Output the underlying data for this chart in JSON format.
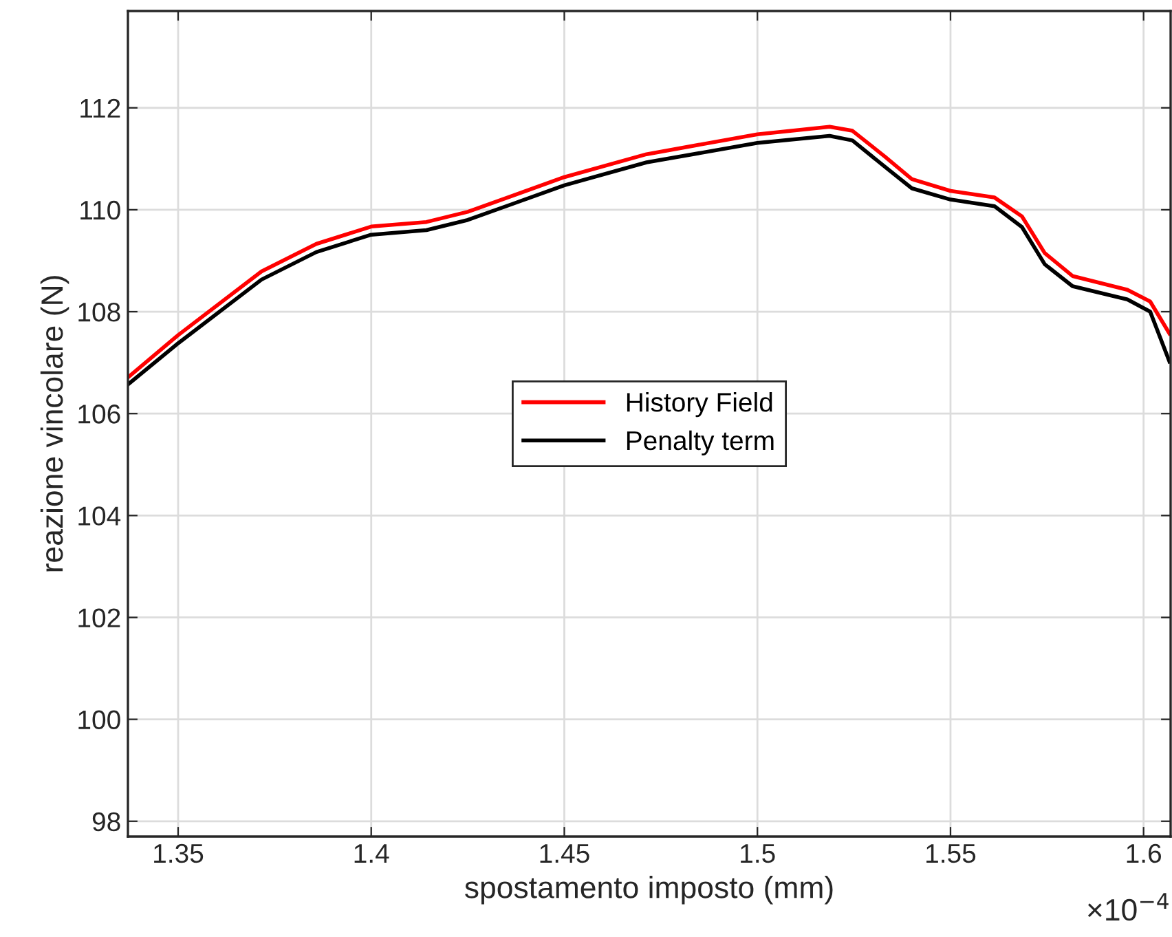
{
  "chart_data": {
    "type": "line",
    "xlabel": "spostamento imposto (mm)",
    "ylabel": "reazione vincolare (N)",
    "annotations": [
      "×10$^{−4}$"
    ],
    "xlim": [
      1.337,
      1.607
    ],
    "xticks": [
      1.35,
      1.4,
      1.45,
      1.5,
      1.55,
      1.6
    ],
    "ylim": [
      97.7,
      113.9
    ],
    "yticks": [
      98,
      100,
      102,
      104,
      106,
      108,
      110,
      112
    ],
    "grid": true,
    "legend": "center",
    "marker": "none",
    "line_style": "solid",
    "series": [
      {
        "name": "History Field",
        "color": "#ff0000",
        "x": [
          1.337,
          1.35,
          1.3716,
          1.3858,
          1.4,
          1.4143,
          1.425,
          1.4368,
          1.45,
          1.4713,
          1.5,
          1.5187,
          1.5246,
          1.5329,
          1.54,
          1.55,
          1.5614,
          1.5685,
          1.5744,
          1.5816,
          1.5958,
          1.6017,
          1.6067
        ],
        "values": [
          106.71,
          107.54,
          108.79,
          109.33,
          109.67,
          109.76,
          109.96,
          110.28,
          110.64,
          111.09,
          111.48,
          111.63,
          111.55,
          111.05,
          110.6,
          110.37,
          110.24,
          109.87,
          109.15,
          108.7,
          108.43,
          108.2,
          107.57
        ]
      },
      {
        "name": "Penalty term",
        "color": "#000000",
        "x": [
          1.337,
          1.35,
          1.3716,
          1.3858,
          1.4,
          1.4143,
          1.425,
          1.4368,
          1.45,
          1.4713,
          1.5,
          1.5187,
          1.5246,
          1.5329,
          1.54,
          1.55,
          1.5614,
          1.5685,
          1.5744,
          1.5816,
          1.5958,
          1.6017,
          1.6067
        ],
        "values": [
          106.57,
          107.38,
          108.63,
          109.17,
          109.51,
          109.6,
          109.8,
          110.12,
          110.48,
          110.93,
          111.31,
          111.45,
          111.36,
          110.85,
          110.42,
          110.2,
          110.07,
          109.66,
          108.93,
          108.5,
          108.24,
          108.0,
          107.02
        ]
      }
    ]
  }
}
